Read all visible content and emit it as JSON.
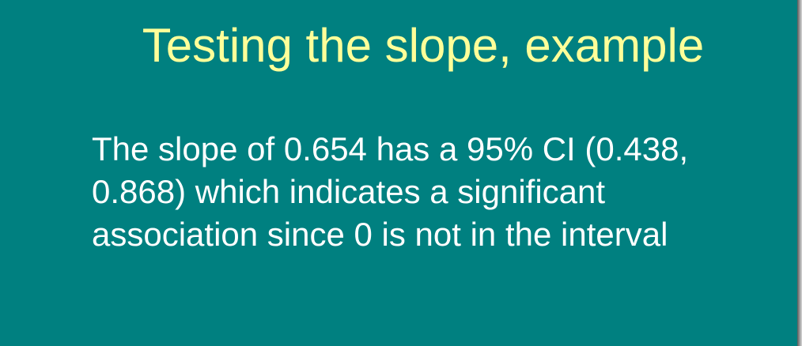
{
  "slide": {
    "title": "Testing the slope, example",
    "body": "The slope of 0.654 has a 95% CI (0.438, 0.868) which indicates a significant association since 0 is not in the interval",
    "colors": {
      "background": "#008080",
      "title": "#ffff99",
      "body": "#ffffff"
    }
  }
}
